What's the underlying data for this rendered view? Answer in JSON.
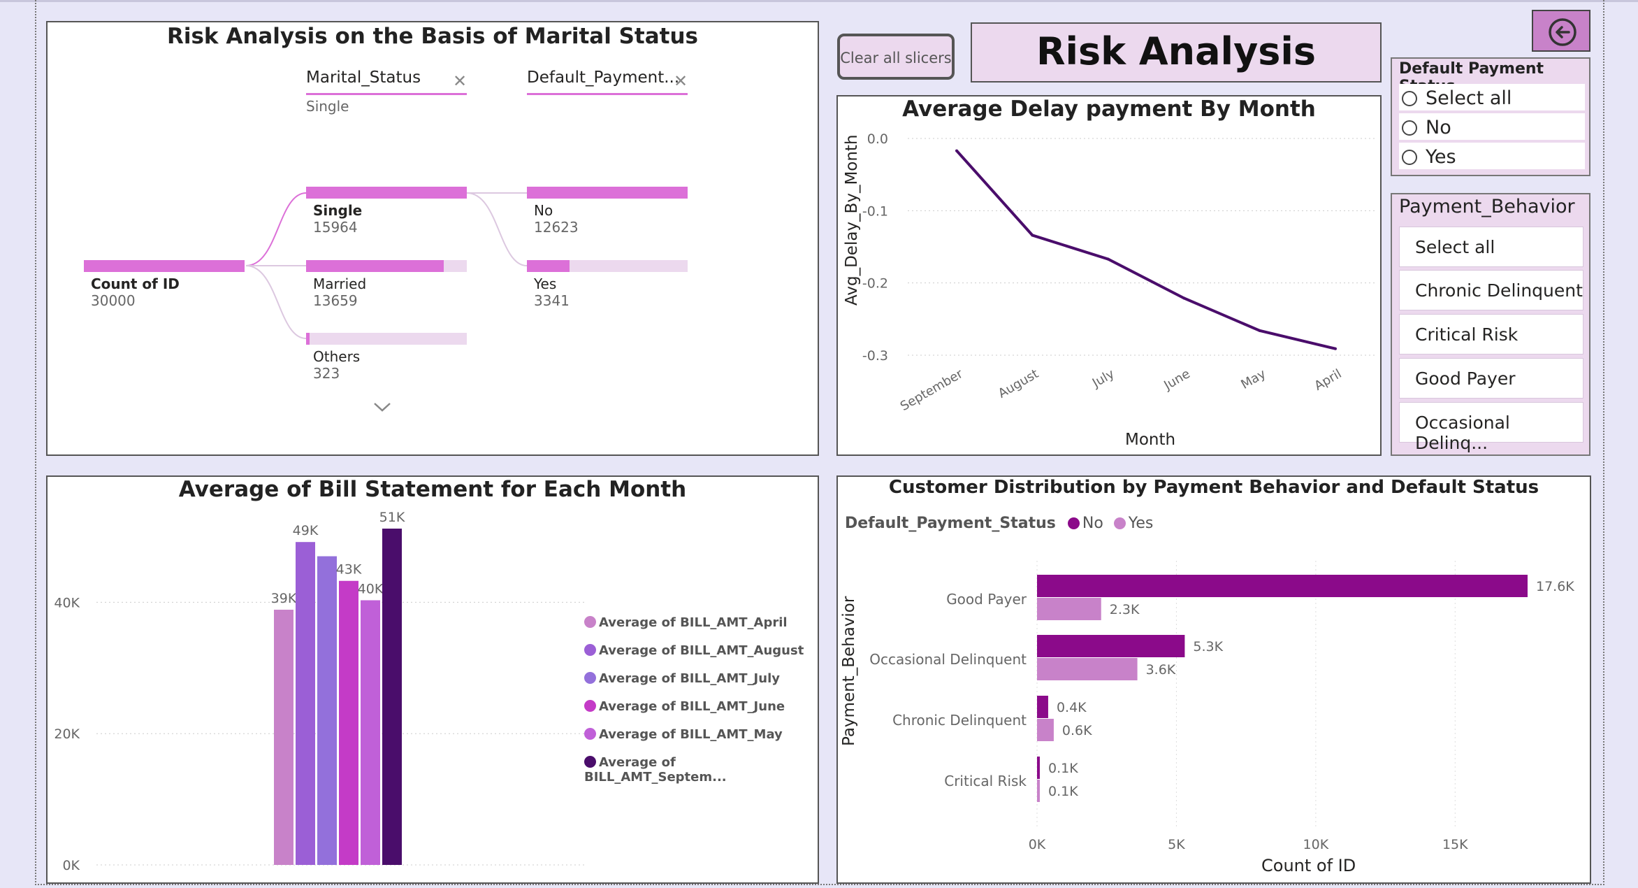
{
  "header": {
    "title": "Risk Analysis",
    "clear_button": "Clear all slicers"
  },
  "colors": {
    "canvas_bg": "#e7e6f7",
    "accent_pink": "#dc70d8",
    "light_pink": "#ecd9ee",
    "dark_purple": "#4a0d6b",
    "no_series": "#8b0a8a",
    "yes_series": "#c882c9"
  },
  "decomp_tree": {
    "title": "Risk Analysis on the Basis of Marital Status",
    "filters": [
      {
        "label": "Marital_Status",
        "selected": "Single"
      },
      {
        "label": "Default_Payment...",
        "selected": ""
      }
    ],
    "root": {
      "label": "Count of ID",
      "value": "30000"
    },
    "level1": [
      {
        "label": "Single",
        "value": "15964",
        "fraction": 1.0,
        "selected": true
      },
      {
        "label": "Married",
        "value": "13659",
        "fraction": 0.855
      },
      {
        "label": "Others",
        "value": "323",
        "fraction": 0.02
      }
    ],
    "level2": [
      {
        "label": "No",
        "value": "12623",
        "fraction": 1.0
      },
      {
        "label": "Yes",
        "value": "3341",
        "fraction": 0.265
      }
    ],
    "expand_icon": "chevron-down-icon"
  },
  "slicer_default": {
    "title": "Default Payment Status",
    "options": [
      "Select all",
      "No",
      "Yes"
    ]
  },
  "slicer_behavior": {
    "title": "Payment_Behavior",
    "options": [
      "Select all",
      "Chronic Delinquent",
      "Critical Risk",
      "Good Payer",
      "Occasional Delinq..."
    ]
  },
  "back_icon": "back-arrow-icon",
  "chart_data": [
    {
      "type": "line",
      "title": "Average Delay payment By Month",
      "xlabel": "Month",
      "ylabel": "Avg_Delay_By_Month",
      "categories": [
        "September",
        "August",
        "July",
        "June",
        "May",
        "April"
      ],
      "values": [
        -0.017,
        -0.134,
        -0.167,
        -0.221,
        -0.266,
        -0.291
      ],
      "ylim": [
        -0.3,
        0.0
      ],
      "yticks": [
        "0.0",
        "-0.1",
        "-0.2",
        "-0.3"
      ],
      "grid": true
    },
    {
      "type": "bar",
      "title": "Average of Bill Statement for Each Month",
      "categories": [
        "Average of BILL_AMT_April",
        "Average of BILL_AMT_August",
        "Average of BILL_AMT_July",
        "Average of BILL_AMT_June",
        "Average of BILL_AMT_May",
        "Average of BILL_AMT_Septem..."
      ],
      "values": [
        38871,
        49179,
        47013,
        43263,
        40311,
        51223
      ],
      "data_labels": [
        "39K",
        "49K",
        "",
        "43K",
        "40K",
        "51K"
      ],
      "bar_colors": [
        "#c882c9",
        "#9b5fd6",
        "#9370db",
        "#c43bc7",
        "#c060d8",
        "#4a0d6b"
      ],
      "yticks": [
        "0K",
        "20K",
        "40K"
      ],
      "ylim": [
        0,
        51223
      ],
      "legend_position": "right"
    },
    {
      "type": "bar",
      "orientation": "horizontal",
      "title": "Customer Distribution by Payment Behavior and Default Status",
      "legend_title": "Default_Payment_Status",
      "xlabel": "Count of ID",
      "ylabel": "Payment_Behavior",
      "categories": [
        "Good Payer",
        "Occasional Delinquent",
        "Chronic Delinquent",
        "Critical Risk"
      ],
      "series": [
        {
          "name": "No",
          "values": [
            17600,
            5300,
            400,
            100
          ],
          "labels": [
            "17.6K",
            "5.3K",
            "0.4K",
            "0.1K"
          ],
          "color": "#8b0a8a"
        },
        {
          "name": "Yes",
          "values": [
            2300,
            3600,
            600,
            100
          ],
          "labels": [
            "2.3K",
            "3.6K",
            "0.6K",
            "0.1K"
          ],
          "color": "#c882c9"
        }
      ],
      "xticks": [
        "0K",
        "5K",
        "10K",
        "15K"
      ],
      "xlim": [
        0,
        17600
      ]
    }
  ]
}
